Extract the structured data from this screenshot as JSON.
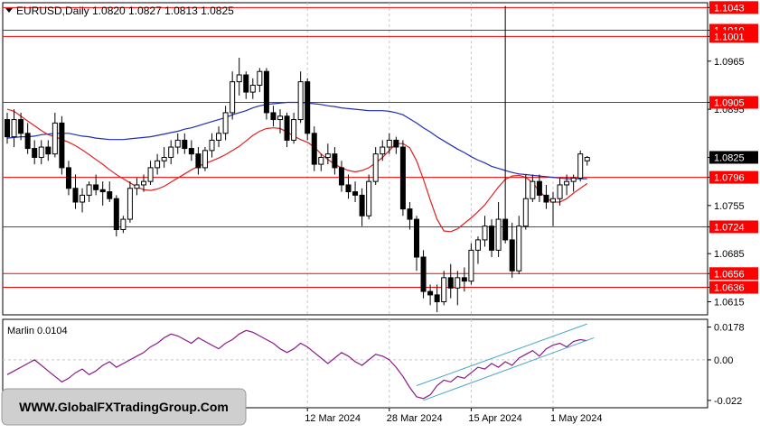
{
  "chart_data": [
    {
      "type": "candlestick",
      "title": "EURUSD,Daily  1.0820 1.0827 1.0813 1.0825",
      "ylim": [
        1.0596,
        1.105
      ],
      "y_ticks": [
        1.1043,
        1.101,
        1.1001,
        1.0965,
        1.0905,
        1.0895,
        1.0825,
        1.0796,
        1.0755,
        1.0724,
        1.0685,
        1.0656,
        1.0636,
        1.0615
      ],
      "x_ticks": [
        {
          "label": "12 Mar 2024",
          "index": 44
        },
        {
          "label": "28 Mar 2024",
          "index": 56
        },
        {
          "label": "15 Apr 2024",
          "index": 68
        },
        {
          "label": "1 May 2024",
          "index": 80
        }
      ],
      "horizontal_levels": [
        {
          "value": 1.1043,
          "label": "1.1043",
          "color": "#ff0000"
        },
        {
          "value": 1.101,
          "label": "1.1010",
          "color": "#ff0000"
        },
        {
          "value": 1.1001,
          "label": "1.1001",
          "color": "#ff0000"
        },
        {
          "value": 1.0905,
          "label": "1.0905",
          "color": "#ff0000"
        },
        {
          "value": 1.0796,
          "label": "1.0796",
          "color": "#ff0000"
        },
        {
          "value": 1.0724,
          "label": "1.0724",
          "color": "#ff0000"
        },
        {
          "value": 1.0656,
          "label": "1.0656",
          "color": "#ff0000"
        },
        {
          "value": 1.0636,
          "label": "1.0636",
          "color": "#ff0000"
        }
      ],
      "current_price": "1.0825",
      "candles": [
        [
          1.088,
          1.089,
          1.0845,
          1.0855
        ],
        [
          1.0855,
          1.0895,
          1.084,
          1.088
        ],
        [
          1.088,
          1.089,
          1.085,
          1.086
        ],
        [
          1.086,
          1.0875,
          1.083,
          1.0838
        ],
        [
          1.0838,
          1.085,
          1.0815,
          1.0825
        ],
        [
          1.0825,
          1.085,
          1.0815,
          1.084
        ],
        [
          1.084,
          1.085,
          1.082,
          1.083
        ],
        [
          1.083,
          1.089,
          1.0825,
          1.0875
        ],
        [
          1.0875,
          1.0885,
          1.08,
          1.081
        ],
        [
          1.081,
          1.082,
          1.077,
          1.078
        ],
        [
          1.078,
          1.08,
          1.075,
          1.076
        ],
        [
          1.076,
          1.078,
          1.0745,
          1.077
        ],
        [
          1.077,
          1.079,
          1.076,
          1.0785
        ],
        [
          1.0785,
          1.08,
          1.077,
          1.0778
        ],
        [
          1.0778,
          1.079,
          1.0755,
          1.0775
        ],
        [
          1.0775,
          1.079,
          1.076,
          1.0765
        ],
        [
          1.0765,
          1.077,
          1.071,
          1.072
        ],
        [
          1.072,
          1.074,
          1.0715,
          1.0735
        ],
        [
          1.0735,
          1.079,
          1.073,
          1.078
        ],
        [
          1.078,
          1.0795,
          1.077,
          1.0785
        ],
        [
          1.0785,
          1.08,
          1.0775,
          1.079
        ],
        [
          1.079,
          1.082,
          1.0785,
          1.081
        ],
        [
          1.081,
          1.083,
          1.08,
          1.082
        ],
        [
          1.082,
          1.084,
          1.081,
          1.0825
        ],
        [
          1.0825,
          1.085,
          1.0815,
          1.084
        ],
        [
          1.084,
          1.086,
          1.083,
          1.085
        ],
        [
          1.085,
          1.086,
          1.083,
          1.0838
        ],
        [
          1.0838,
          1.085,
          1.082,
          1.083
        ],
        [
          1.083,
          1.084,
          1.08,
          1.081
        ],
        [
          1.081,
          1.084,
          1.0805,
          1.0835
        ],
        [
          1.0835,
          1.086,
          1.0825,
          1.085
        ],
        [
          1.085,
          1.087,
          1.084,
          1.086
        ],
        [
          1.086,
          1.09,
          1.085,
          1.089
        ],
        [
          1.089,
          1.095,
          1.088,
          1.0935
        ],
        [
          1.0935,
          1.097,
          1.0915,
          1.0945
        ],
        [
          1.0945,
          1.095,
          1.091,
          1.092
        ],
        [
          1.092,
          1.094,
          1.091,
          1.093
        ],
        [
          1.093,
          1.0955,
          1.092,
          1.095
        ],
        [
          1.095,
          1.0955,
          1.088,
          1.089
        ],
        [
          1.089,
          1.09,
          1.087,
          1.088
        ],
        [
          1.088,
          1.0895,
          1.086,
          1.0885
        ],
        [
          1.0885,
          1.089,
          1.084,
          1.085
        ],
        [
          1.085,
          1.089,
          1.0845,
          1.088
        ],
        [
          1.088,
          1.095,
          1.0875,
          1.0935
        ],
        [
          1.0935,
          1.094,
          1.085,
          1.086
        ],
        [
          1.086,
          1.087,
          1.0805,
          1.0815
        ],
        [
          1.0815,
          1.083,
          1.0805,
          1.0825
        ],
        [
          1.0825,
          1.0845,
          1.0815,
          1.083
        ],
        [
          1.083,
          1.084,
          1.08,
          1.081
        ],
        [
          1.081,
          1.082,
          1.0775,
          1.0785
        ],
        [
          1.0785,
          1.08,
          1.0765,
          1.0775
        ],
        [
          1.0775,
          1.079,
          1.076,
          1.077
        ],
        [
          1.077,
          1.078,
          1.0725,
          1.074
        ],
        [
          1.074,
          1.08,
          1.0735,
          1.079
        ],
        [
          1.079,
          1.084,
          1.0785,
          1.083
        ],
        [
          1.083,
          1.085,
          1.082,
          1.084
        ],
        [
          1.084,
          1.086,
          1.083,
          1.085
        ],
        [
          1.085,
          1.0855,
          1.083,
          1.084
        ],
        [
          1.084,
          1.085,
          1.074,
          1.075
        ],
        [
          1.075,
          1.076,
          1.072,
          1.0735
        ],
        [
          1.0735,
          1.074,
          1.066,
          1.068
        ],
        [
          1.068,
          1.069,
          1.062,
          1.063
        ],
        [
          1.063,
          1.064,
          1.061,
          1.0625
        ],
        [
          1.0625,
          1.064,
          1.06,
          1.0615
        ],
        [
          1.0615,
          1.066,
          1.061,
          1.065
        ],
        [
          1.065,
          1.067,
          1.062,
          1.0635
        ],
        [
          1.0635,
          1.066,
          1.061,
          1.065
        ],
        [
          1.065,
          1.0665,
          1.063,
          1.0645
        ],
        [
          1.0645,
          1.07,
          1.064,
          1.069
        ],
        [
          1.069,
          1.071,
          1.067,
          1.0705
        ],
        [
          1.0705,
          1.074,
          1.0695,
          1.0725
        ],
        [
          1.0725,
          1.0735,
          1.068,
          1.069
        ],
        [
          1.069,
          1.076,
          1.068,
          1.0735
        ],
        [
          1.0735,
          1.1045,
          1.07,
          1.0705
        ],
        [
          1.0705,
          1.073,
          1.065,
          1.066
        ],
        [
          1.066,
          1.074,
          1.0655,
          1.0725
        ],
        [
          1.0725,
          1.08,
          1.072,
          1.0765
        ],
        [
          1.0765,
          1.08,
          1.076,
          1.079
        ],
        [
          1.079,
          1.08,
          1.076,
          1.077
        ],
        [
          1.077,
          1.0785,
          1.075,
          1.076
        ],
        [
          1.076,
          1.0775,
          1.0725,
          1.0765
        ],
        [
          1.0765,
          1.0795,
          1.0755,
          1.0785
        ],
        [
          1.0785,
          1.08,
          1.077,
          1.079
        ],
        [
          1.079,
          1.08,
          1.0775,
          1.0795
        ],
        [
          1.0795,
          1.0835,
          1.079,
          1.083
        ],
        [
          1.082,
          1.0827,
          1.0813,
          1.0825
        ]
      ],
      "lines": [
        {
          "color": "#1f2fb4",
          "values": [
            1.0853,
            1.0854,
            1.0855,
            1.0855,
            1.0856,
            1.0858,
            1.0859,
            1.086,
            1.086,
            1.086,
            1.0858,
            1.0856,
            1.0855,
            1.0853,
            1.0852,
            1.0851,
            1.0851,
            1.0851,
            1.0852,
            1.0853,
            1.0854,
            1.0855,
            1.0857,
            1.0859,
            1.0861,
            1.0863,
            1.0866,
            1.0868,
            1.0871,
            1.0874,
            1.0877,
            1.088,
            1.0883,
            1.0887,
            1.089,
            1.0893,
            1.0897,
            1.09,
            1.0902,
            1.0903,
            1.0904,
            1.0905,
            1.0905,
            1.0905,
            1.0904,
            1.0903,
            1.0902,
            1.09,
            1.0899,
            1.0897,
            1.0896,
            1.0895,
            1.0894,
            1.0893,
            1.0893,
            1.0893,
            1.0892,
            1.089,
            1.0887,
            1.0881,
            1.0875,
            1.0868,
            1.0862,
            1.0855,
            1.0849,
            1.0843,
            1.0837,
            1.0832,
            1.0826,
            1.0821,
            1.0817,
            1.0812,
            1.0809,
            1.0806,
            1.0803,
            1.0801,
            1.08,
            1.0799,
            1.0798,
            1.0797,
            1.0796,
            1.0795,
            1.0794,
            1.0794,
            1.0794,
            1.0794
          ]
        },
        {
          "color": "#e02020",
          "values": [
            1.0895,
            1.0892,
            1.0885,
            1.0878,
            1.0871,
            1.0864,
            1.0858,
            1.0855,
            1.0851,
            1.0847,
            1.0842,
            1.0836,
            1.0829,
            1.0822,
            1.0815,
            1.0807,
            1.08,
            1.0794,
            1.0788,
            1.0782,
            1.0778,
            1.0777,
            1.0779,
            1.0783,
            1.0789,
            1.0795,
            1.0801,
            1.0807,
            1.0812,
            1.0816,
            1.082,
            1.0824,
            1.0829,
            1.0835,
            1.0841,
            1.0849,
            1.0857,
            1.0863,
            1.0867,
            1.0868,
            1.0867,
            1.0862,
            1.0856,
            1.0851,
            1.0847,
            1.084,
            1.083,
            1.0822,
            1.0815,
            1.081,
            1.0806,
            1.0804,
            1.0806,
            1.081,
            1.0817,
            1.0825,
            1.0835,
            1.0845,
            1.0845,
            1.0839,
            1.082,
            1.0793,
            1.0763,
            1.0735,
            1.0718,
            1.0717,
            1.0721,
            1.0729,
            1.0737,
            1.0746,
            1.0756,
            1.0769,
            1.0782,
            1.0793,
            1.0798,
            1.0799,
            1.0796,
            1.0788,
            1.0776,
            1.0766,
            1.076,
            1.076,
            1.0765,
            1.0773,
            1.078,
            1.0787
          ]
        }
      ]
    },
    {
      "type": "line",
      "title": "Marlin 0.0104",
      "ylim": [
        -0.026,
        0.022
      ],
      "y_ticks": [
        0.0178,
        0.0,
        -0.022
      ],
      "y_tick_labels": [
        "0.0178",
        "0.00",
        "-0.022"
      ],
      "series": [
        {
          "color": "#8b1a8b",
          "values": [
            -0.008,
            -0.006,
            -0.004,
            -0.002,
            0.0,
            -0.003,
            -0.006,
            -0.009,
            -0.012,
            -0.01,
            -0.007,
            -0.005,
            -0.008,
            -0.006,
            -0.003,
            -0.001,
            -0.004,
            -0.002,
            0.0,
            0.002,
            0.004,
            0.007,
            0.009,
            0.012,
            0.014,
            0.013,
            0.011,
            0.009,
            0.012,
            0.01,
            0.008,
            0.006,
            0.009,
            0.011,
            0.014,
            0.016,
            0.015,
            0.013,
            0.011,
            0.009,
            0.006,
            0.004,
            0.006,
            0.009,
            0.007,
            0.004,
            0.001,
            -0.002,
            0.001,
            0.004,
            0.002,
            -0.001,
            -0.003,
            0.0,
            0.003,
            0.002,
            0.0,
            -0.004,
            -0.009,
            -0.015,
            -0.02,
            -0.021,
            -0.019,
            -0.014,
            -0.011,
            -0.012,
            -0.009,
            -0.01,
            -0.007,
            -0.004,
            -0.005,
            -0.002,
            -0.004,
            -0.001,
            -0.003,
            0.001,
            0.003,
            0.005,
            0.002,
            0.006,
            0.008,
            0.009,
            0.007,
            0.01,
            0.011,
            0.0104
          ]
        }
      ],
      "trendlines": [
        {
          "color": "#4aa8c8",
          "points": [
            [
              60,
              -0.014
            ],
            [
              85,
              0.0195
            ]
          ]
        },
        {
          "color": "#4aa8c8",
          "points": [
            [
              61,
              -0.022
            ],
            [
              86,
              0.012
            ]
          ]
        }
      ]
    }
  ],
  "watermark": "WWW.GlobalFXTradingGroup.Com",
  "colors": {
    "bull": "#ffffff",
    "bear": "#000000",
    "level": "#ff0000",
    "ma_slow": "#1f2fb4",
    "ma_fast": "#e02020",
    "oscillator": "#8b1a8b",
    "channel": "#4aa8c8",
    "grid": "#c8c8c8"
  }
}
